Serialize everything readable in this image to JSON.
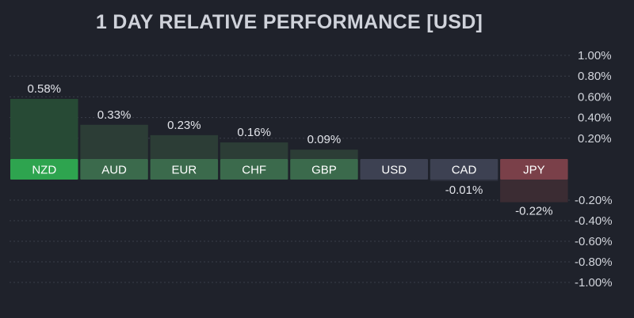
{
  "title": "1 DAY RELATIVE PERFORMANCE  [USD]",
  "chart_data": {
    "type": "bar",
    "title": "1 DAY RELATIVE PERFORMANCE  [USD]",
    "categories": [
      "NZD",
      "AUD",
      "EUR",
      "CHF",
      "GBP",
      "USD",
      "CAD",
      "JPY"
    ],
    "values": [
      0.58,
      0.33,
      0.23,
      0.16,
      0.09,
      0,
      -0.01,
      -0.22
    ],
    "value_labels": [
      "0.58%",
      "0.33%",
      "0.23%",
      "0.16%",
      "0.09%",
      "",
      "-0.01%",
      "-0.22%"
    ],
    "ylim": [
      -1.0,
      1.0
    ],
    "y_ticks_positive": [
      {
        "value": 1.0,
        "label": "1.00%"
      },
      {
        "value": 0.8,
        "label": "0.80%"
      },
      {
        "value": 0.6,
        "label": "0.60%"
      },
      {
        "value": 0.4,
        "label": "0.40%"
      },
      {
        "value": 0.2,
        "label": "0.20%"
      }
    ],
    "y_ticks_negative": [
      {
        "value": -0.2,
        "label": "-0.20%"
      },
      {
        "value": -0.4,
        "label": "-0.40%"
      },
      {
        "value": -0.6,
        "label": "-0.60%"
      },
      {
        "value": -0.8,
        "label": "-0.80%"
      },
      {
        "value": -1.0,
        "label": "-1.00%"
      }
    ],
    "grid": true,
    "colors": {
      "strong_positive": "#2ea44f",
      "positive": "#3b6a4c",
      "neutral": "#3d4152",
      "negative": "#7a4049",
      "background": "#1f222b",
      "grid": "#3a3e4a"
    }
  }
}
